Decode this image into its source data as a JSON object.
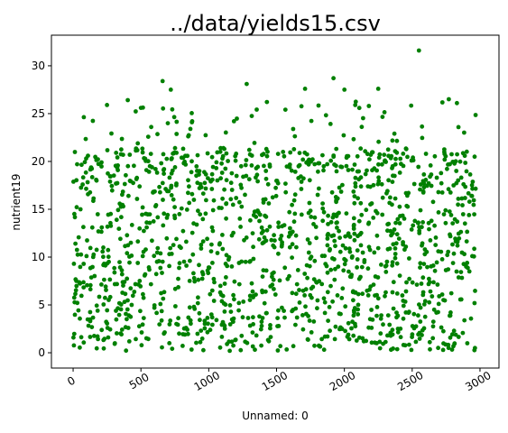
{
  "chart_data": {
    "type": "scatter",
    "title": "../data/yields15.csv",
    "xlabel": "Unnamed: 0",
    "ylabel": "nutrient19",
    "xlim": [
      -160,
      3140
    ],
    "ylim": [
      -1.6,
      33.2
    ],
    "xticks": [
      0,
      500,
      1000,
      1500,
      2000,
      2500,
      3000
    ],
    "xtick_labels": [
      "0",
      "500",
      "1000",
      "1500",
      "2000",
      "2500",
      "3000"
    ],
    "xtick_rotation_deg": 30,
    "yticks": [
      0,
      5,
      10,
      15,
      20,
      25,
      30
    ],
    "ytick_labels": [
      "0",
      "5",
      "10",
      "15",
      "20",
      "25",
      "30"
    ],
    "grid": false,
    "legend": "none",
    "marker_color": "#008000",
    "series": [
      {
        "points_summary": "~1500 points spread uniformly over x 0–2970 with y mostly 0–22 and sparser highs up to ~32",
        "x": [
          0,
          50,
          100,
          150,
          200,
          250,
          300,
          350,
          400,
          450,
          500,
          550,
          600,
          650,
          700,
          750,
          800,
          850,
          900,
          950,
          1000,
          1050,
          1100,
          1150,
          1200,
          1250,
          1300,
          1350,
          1400,
          1450,
          1500,
          1550,
          1600,
          1650,
          1700,
          1750,
          1800,
          1850,
          1900,
          1950,
          2000,
          2050,
          2100,
          2150,
          2200,
          2250,
          2300,
          2350,
          2400,
          2450,
          2500,
          2550,
          2600,
          2650,
          2700,
          2750,
          2800,
          2850,
          2900,
          2950
        ],
        "y_highlights": {
          "max_point": {
            "x": 2550,
            "y": 31.6
          },
          "notable_high_points": [
            {
              "x": 660,
              "y": 28.4
            },
            {
              "x": 1280,
              "y": 28.1
            },
            {
              "x": 1920,
              "y": 28.7
            },
            {
              "x": 2000,
              "y": 27.5
            },
            {
              "x": 2250,
              "y": 27.6
            },
            {
              "x": 2770,
              "y": 26.5
            },
            {
              "x": 2830,
              "y": 26.1
            },
            {
              "x": 720,
              "y": 27.5
            },
            {
              "x": 1710,
              "y": 27.6
            },
            {
              "x": 250,
              "y": 25.9
            },
            {
              "x": 500,
              "y": 25.6
            },
            {
              "x": 2080,
              "y": 25.9
            }
          ]
        }
      }
    ]
  }
}
